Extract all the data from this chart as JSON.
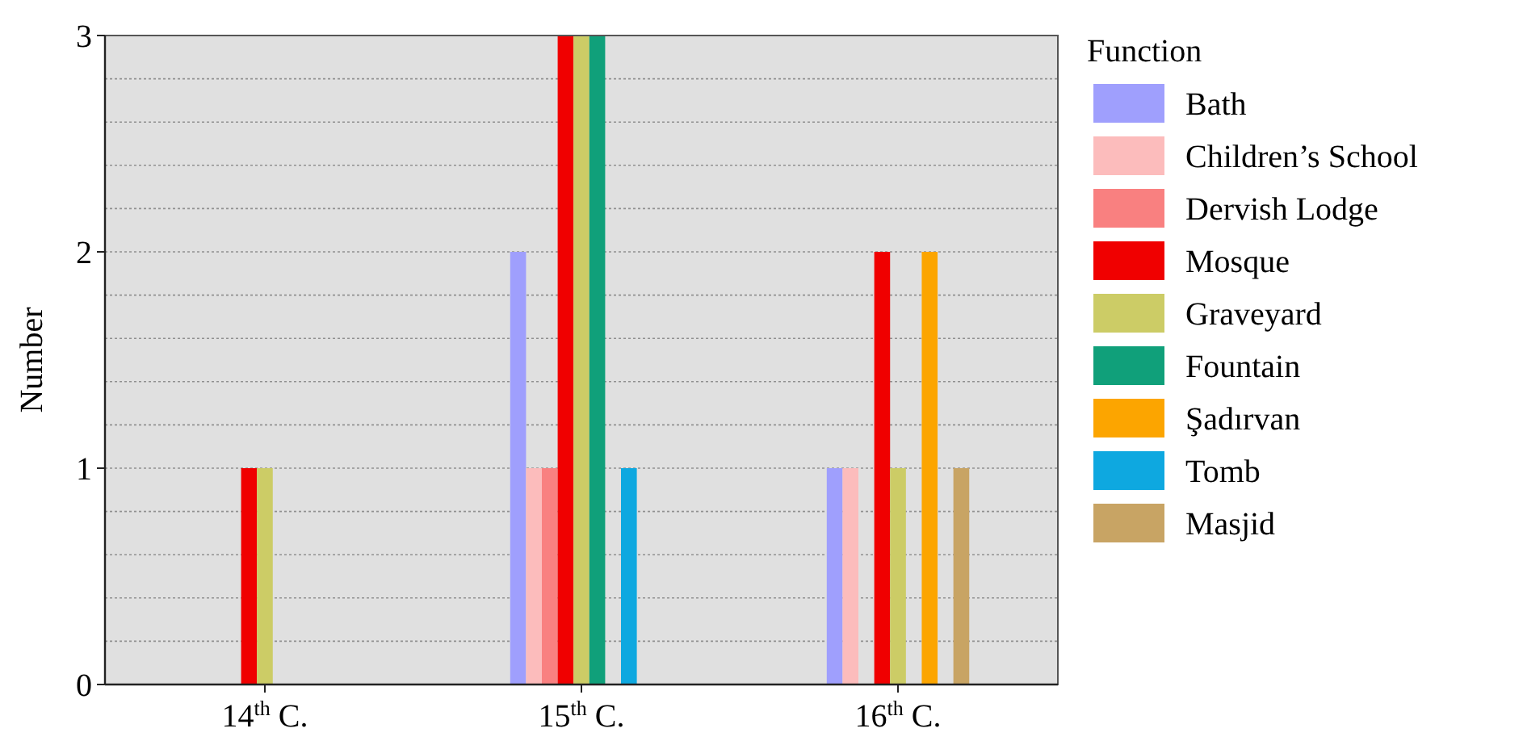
{
  "chart_data": {
    "type": "bar",
    "ylabel": "Number",
    "legend_title": "Function",
    "legend": "right",
    "grid": "y",
    "categories": [
      "14$^{th}$ C.",
      "15$^{th}$ C.",
      "16$^{th}$ C."
    ],
    "ylim": [
      0,
      3
    ],
    "yticks": [
      0,
      {
        "value": 0.2,
        "label": null
      },
      {
        "value": 0.4,
        "label": null
      },
      {
        "value": 0.6,
        "label": null
      },
      {
        "value": 0.8,
        "label": null
      },
      1,
      {
        "value": 1.2,
        "label": null
      },
      {
        "value": 1.4,
        "label": null
      },
      {
        "value": 1.6,
        "label": null
      },
      {
        "value": 1.8,
        "label": null
      },
      2,
      {
        "value": 2.2,
        "label": null
      },
      {
        "value": 2.4,
        "label": null
      },
      {
        "value": 2.6,
        "label": null
      },
      {
        "value": 2.8,
        "label": null
      },
      3
    ],
    "series": [
      {
        "name": "Bath",
        "color": "#9f9ffd",
        "values": [
          0,
          2,
          1
        ]
      },
      {
        "name": "Children’s School",
        "color": "#fcbcbc",
        "values": [
          0,
          1,
          1
        ]
      },
      {
        "name": "Dervish Lodge",
        "color": "#f98080",
        "values": [
          0,
          1,
          0
        ]
      },
      {
        "name": "Mosque",
        "color": "#f00000",
        "values": [
          1,
          3,
          2
        ]
      },
      {
        "name": "Graveyard",
        "color": "#cccc66",
        "values": [
          1,
          3,
          1
        ]
      },
      {
        "name": "Fountain",
        "color": "#10a07a",
        "values": [
          0,
          3,
          0
        ]
      },
      {
        "name": "Şadırvan",
        "color": "#fca500",
        "values": [
          0,
          0,
          2
        ]
      },
      {
        "name": "Tomb",
        "color": "#0ea8e0",
        "values": [
          0,
          1,
          0
        ]
      },
      {
        "name": "Masjid",
        "color": "#c8a464",
        "values": [
          0,
          0,
          1
        ]
      }
    ]
  }
}
